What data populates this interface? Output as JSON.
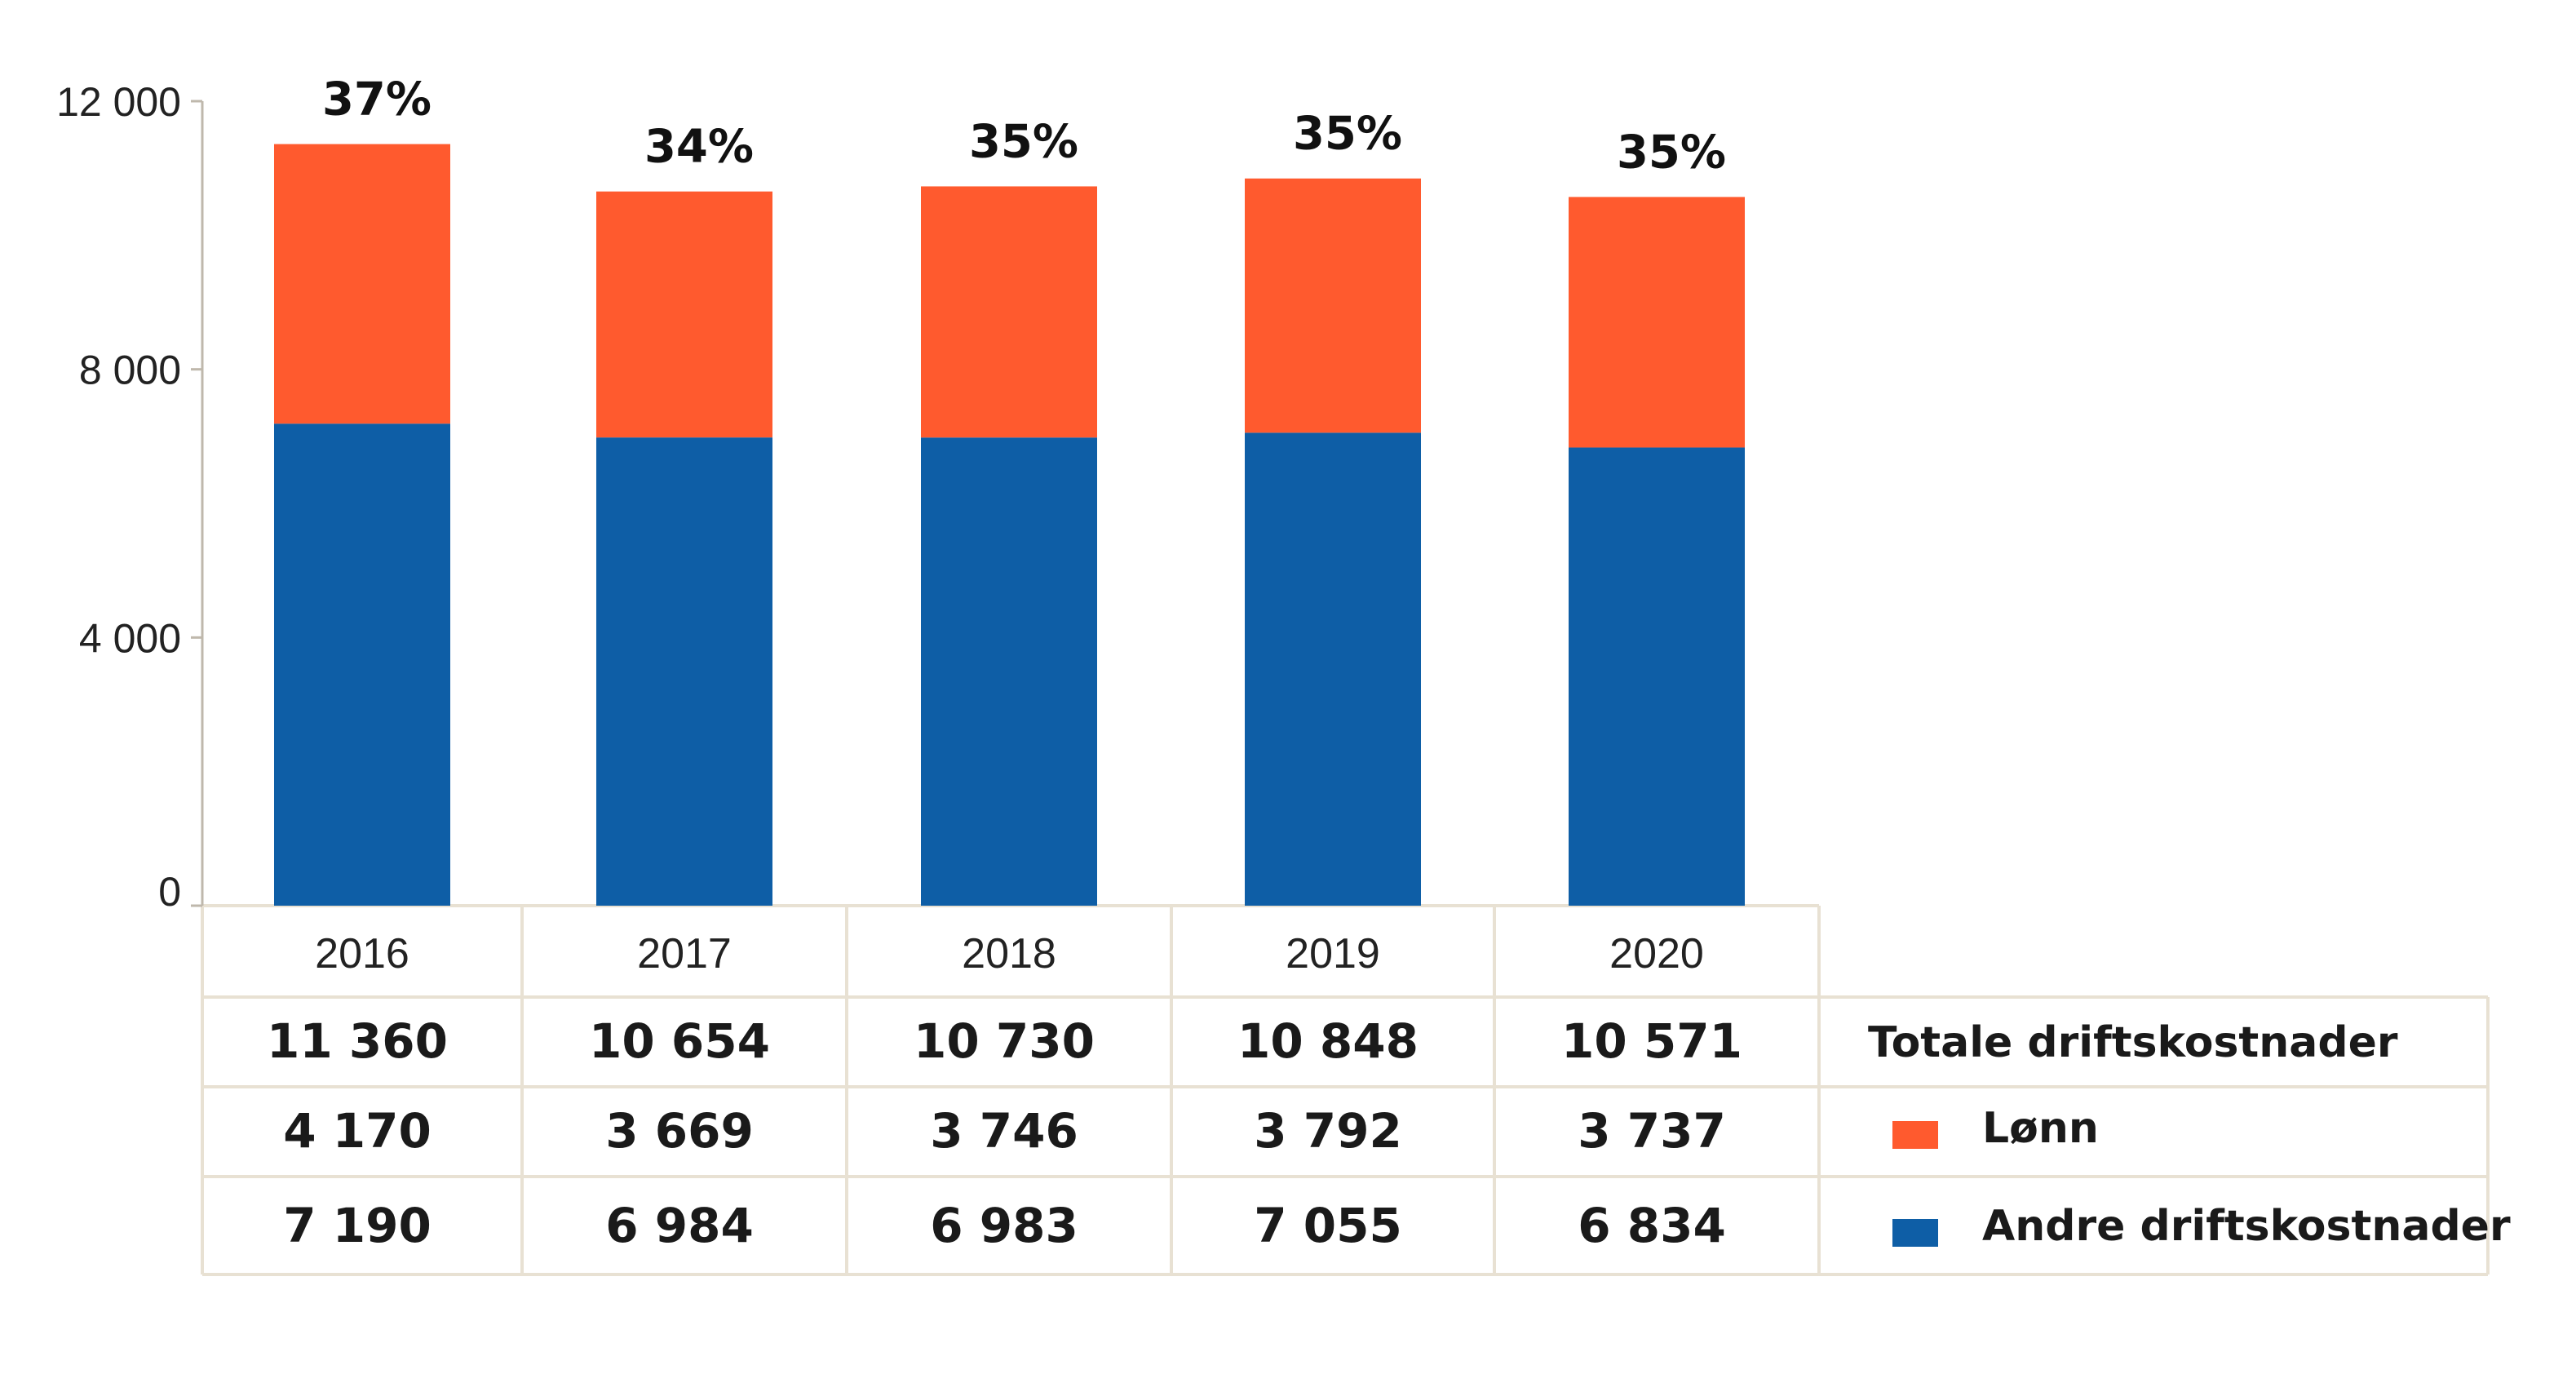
{
  "chart_data": {
    "type": "bar",
    "stacked": true,
    "categories": [
      "2016",
      "2017",
      "2018",
      "2019",
      "2020"
    ],
    "series": [
      {
        "name": "Andre driftskostnader",
        "color": "#0e5ea6",
        "values": [
          7190,
          6984,
          6983,
          7055,
          6834
        ]
      },
      {
        "name": "Lønn",
        "color": "#ff5a2e",
        "values": [
          4170,
          3669,
          3746,
          3792,
          3737
        ]
      }
    ],
    "totals": [
      11360,
      10654,
      10730,
      10848,
      10571
    ],
    "share_labels": [
      "37%",
      "34%",
      "35%",
      "35%",
      "35%"
    ],
    "ylim": [
      0,
      12000
    ],
    "yticks": [
      0,
      4000,
      8000,
      12000
    ],
    "ytick_labels": [
      "0",
      "4 000",
      "8 000",
      "12 000"
    ],
    "grid": false,
    "legend_position": "right of data table",
    "table": {
      "total_label": "Totale driftskostnader",
      "rows": [
        {
          "label": "Totale driftskostnader",
          "values": [
            "11 360",
            "10 654",
            "10 730",
            "10 848",
            "10 571"
          ]
        },
        {
          "label": "Lønn",
          "values": [
            "4 170",
            "3 669",
            "3 746",
            "3 792",
            "3 737"
          ]
        },
        {
          "label": "Andre driftskostnader",
          "values": [
            "7 190",
            "6 984",
            "6 983",
            "7 055",
            "6 834"
          ]
        }
      ]
    },
    "colors": {
      "axis": "#bfb8ac",
      "grid_lines": "#e8e1d3",
      "text": "#1a1a1a"
    }
  }
}
